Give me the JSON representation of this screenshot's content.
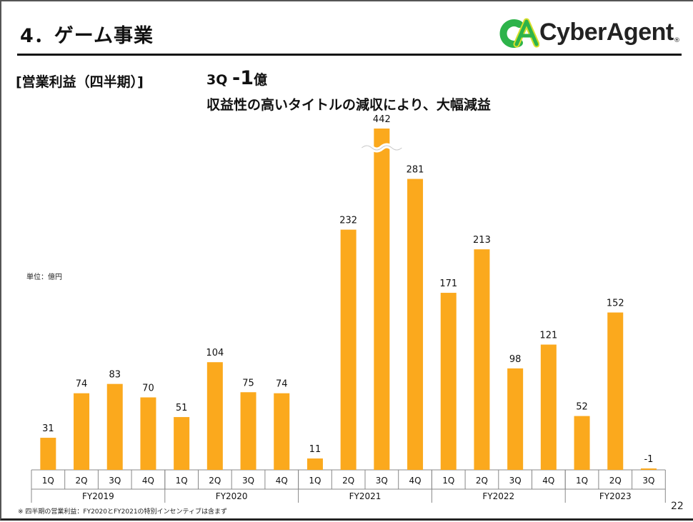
{
  "header": {
    "title": "4．ゲーム事業",
    "logo_text": "CyberAgent",
    "logo_registered": "®",
    "logo_mark_text": "CA"
  },
  "section_label": "[営業利益（四半期）]",
  "headline": {
    "prefix": "3Q ",
    "value": "-1",
    "unit": "億",
    "summary": "収益性の高いタイトルの減収により、大幅減益"
  },
  "unit_note": "単位：億円",
  "footnote": "※ 四半期の営業利益：FY2020とFY2021の特別インセンティブは含まず",
  "page_number": "22",
  "colors": {
    "bar": "#FBA91D",
    "logo_green": "#2DB34A",
    "logo_yellow": "#D8DE2A"
  },
  "chart_data": {
    "type": "bar",
    "title": "",
    "xlabel": "",
    "ylabel": "",
    "axis_break": {
      "category_index": 10,
      "label": "442"
    },
    "groups": [
      {
        "name": "FY2019",
        "categories": [
          "1Q",
          "2Q",
          "3Q",
          "4Q"
        ],
        "values": [
          31,
          74,
          83,
          70
        ]
      },
      {
        "name": "FY2020",
        "categories": [
          "1Q",
          "2Q",
          "3Q",
          "4Q"
        ],
        "values": [
          51,
          104,
          75,
          74
        ]
      },
      {
        "name": "FY2021",
        "categories": [
          "1Q",
          "2Q",
          "3Q",
          "4Q"
        ],
        "values": [
          11,
          232,
          442,
          281
        ]
      },
      {
        "name": "FY2022",
        "categories": [
          "1Q",
          "2Q",
          "3Q",
          "4Q"
        ],
        "values": [
          171,
          213,
          98,
          121
        ]
      },
      {
        "name": "FY2023",
        "categories": [
          "1Q",
          "2Q",
          "3Q"
        ],
        "values": [
          52,
          152,
          -1
        ]
      }
    ],
    "grid": false,
    "legend": "none"
  }
}
